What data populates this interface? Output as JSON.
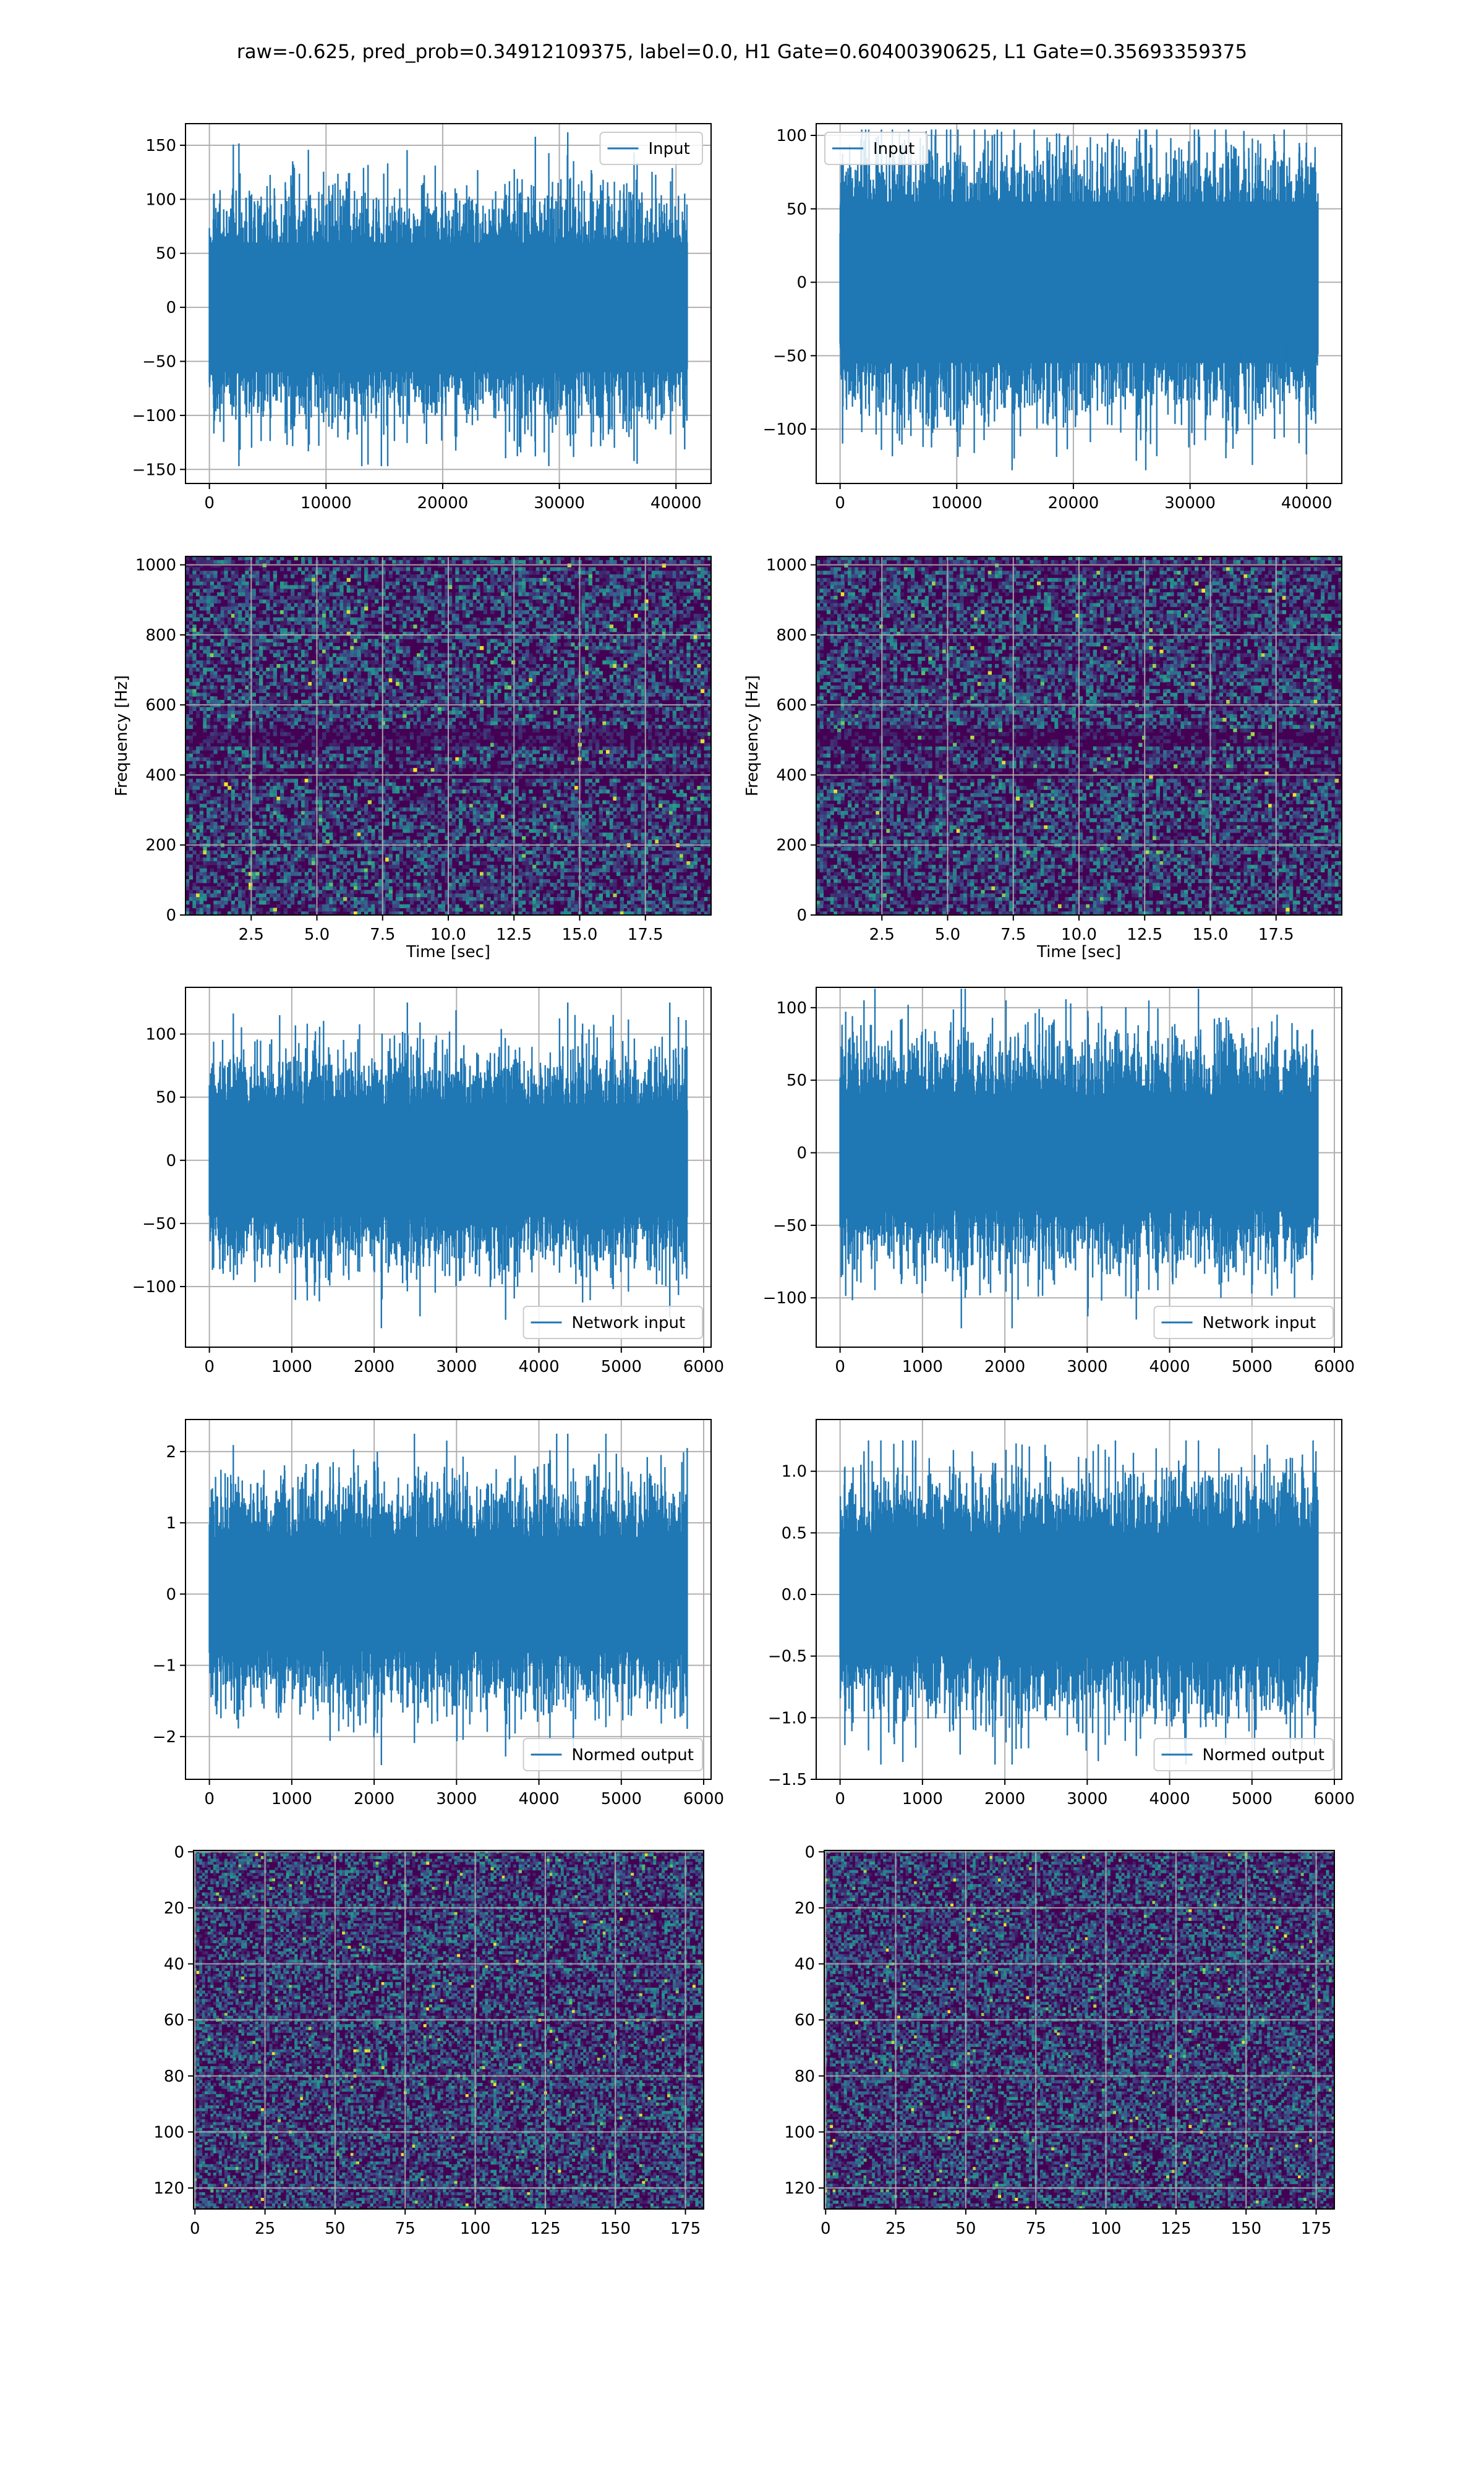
{
  "figure": {
    "title": "raw=-0.625, pred_prob=0.34912109375, label=0.0, H1 Gate=0.60400390625, L1 Gate=0.35693359375"
  },
  "colors": {
    "line": "#1f77b4",
    "grid": "#b0b0b0",
    "viridis_low": "#440154",
    "viridis_mid": "#21918c",
    "viridis_high": "#fde725"
  },
  "chart_data": [
    {
      "id": "h1_input",
      "type": "line",
      "legend": "Input",
      "legend_loc": "upper right",
      "xlim": [
        -2048,
        43008
      ],
      "ylim": [
        -163,
        170
      ],
      "xticks": [
        0,
        10000,
        20000,
        30000,
        40000
      ],
      "yticks": [
        -150,
        -100,
        -50,
        0,
        50,
        100,
        150
      ],
      "signal": {
        "x_start": 0,
        "x_end": 40960,
        "min": -147,
        "max": 162,
        "typical_envelope": 80,
        "dense_band": 60
      },
      "grid": true
    },
    {
      "id": "l1_input",
      "type": "line",
      "legend": "Input",
      "legend_loc": "upper left",
      "xlim": [
        -2048,
        43008
      ],
      "ylim": [
        -137,
        108
      ],
      "xticks": [
        0,
        10000,
        20000,
        30000,
        40000
      ],
      "yticks": [
        -100,
        -50,
        0,
        50,
        100
      ],
      "signal": {
        "x_start": 0,
        "x_end": 40960,
        "min": -128,
        "max": 104,
        "typical_envelope": 70,
        "dense_band": 55
      },
      "grid": true
    },
    {
      "id": "h1_spectrogram",
      "type": "heatmap",
      "xlabel": "Time [sec]",
      "ylabel": "Frequency [Hz]",
      "xlim": [
        0,
        20
      ],
      "ylim": [
        0,
        1024
      ],
      "xticks": [
        "2.5",
        "5.0",
        "7.5",
        "10.0",
        "12.5",
        "15.0",
        "17.5"
      ],
      "yticks": [
        "0",
        "200",
        "400",
        "600",
        "800",
        "1000"
      ],
      "colormap": "viridis",
      "grid": true
    },
    {
      "id": "l1_spectrogram",
      "type": "heatmap",
      "xlabel": "Time [sec]",
      "ylabel": "Frequency [Hz]",
      "xlim": [
        0,
        20
      ],
      "ylim": [
        0,
        1024
      ],
      "xticks": [
        "2.5",
        "5.0",
        "7.5",
        "10.0",
        "12.5",
        "15.0",
        "17.5"
      ],
      "yticks": [
        "0",
        "200",
        "400",
        "600",
        "800",
        "1000"
      ],
      "colormap": "viridis",
      "grid": true
    },
    {
      "id": "h1_network_input",
      "type": "line",
      "legend": "Network input",
      "legend_loc": "lower right",
      "xlim": [
        -290,
        6090
      ],
      "ylim": [
        -148,
        137
      ],
      "xticks": [
        0,
        1000,
        2000,
        3000,
        4000,
        5000,
        6000
      ],
      "yticks": [
        -100,
        -50,
        0,
        50,
        100
      ],
      "signal": {
        "x_start": 0,
        "x_end": 5800,
        "min": -133,
        "max": 125,
        "typical_envelope": 65,
        "dense_band": 45
      },
      "grid": true
    },
    {
      "id": "l1_network_input",
      "type": "line",
      "legend": "Network input",
      "legend_loc": "lower right",
      "xlim": [
        -290,
        6090
      ],
      "ylim": [
        -134,
        114
      ],
      "xticks": [
        0,
        1000,
        2000,
        3000,
        4000,
        5000,
        6000
      ],
      "yticks": [
        -100,
        -50,
        0,
        50,
        100
      ],
      "signal": {
        "x_start": 0,
        "x_end": 5800,
        "min": -121,
        "max": 113,
        "typical_envelope": 60,
        "dense_band": 40
      },
      "grid": true
    },
    {
      "id": "h1_normed_output",
      "type": "line",
      "legend": "Normed output",
      "legend_loc": "lower right",
      "xlim": [
        -290,
        6090
      ],
      "ylim": [
        -2.6,
        2.45
      ],
      "xticks": [
        0,
        1000,
        2000,
        3000,
        4000,
        5000,
        6000
      ],
      "yticks": [
        -2,
        -1,
        0,
        1,
        2
      ],
      "signal": {
        "x_start": 0,
        "x_end": 5800,
        "min": -2.4,
        "max": 2.25,
        "typical_envelope": 1.2,
        "dense_band": 0.8
      },
      "grid": true
    },
    {
      "id": "l1_normed_output",
      "type": "line",
      "legend": "Normed output",
      "legend_loc": "lower right",
      "xlim": [
        -290,
        6090
      ],
      "ylim": [
        -1.5,
        1.42
      ],
      "xticks": [
        0,
        1000,
        2000,
        3000,
        4000,
        5000,
        6000
      ],
      "yticks": [
        -1.5,
        -1.0,
        -0.5,
        0.0,
        0.5,
        1.0
      ],
      "yticklabels": [
        "−1.5",
        "−1.0",
        "−0.5",
        "0.0",
        "0.5",
        "1.0"
      ],
      "signal": {
        "x_start": 0,
        "x_end": 5800,
        "min": -1.38,
        "max": 1.25,
        "typical_envelope": 0.75,
        "dense_band": 0.5
      },
      "grid": true
    },
    {
      "id": "h1_image",
      "type": "heatmap",
      "xlim": [
        0,
        182
      ],
      "ylim": [
        128,
        0
      ],
      "xticks": [
        0,
        25,
        50,
        75,
        100,
        125,
        150,
        175
      ],
      "yticks": [
        0,
        20,
        40,
        60,
        80,
        100,
        120
      ],
      "colormap": "viridis",
      "grid": true
    },
    {
      "id": "l1_image",
      "type": "heatmap",
      "xlim": [
        0,
        182
      ],
      "ylim": [
        128,
        0
      ],
      "xticks": [
        0,
        25,
        50,
        75,
        100,
        125,
        150,
        175
      ],
      "yticks": [
        0,
        20,
        40,
        60,
        80,
        100,
        120
      ],
      "colormap": "viridis",
      "grid": true
    }
  ]
}
